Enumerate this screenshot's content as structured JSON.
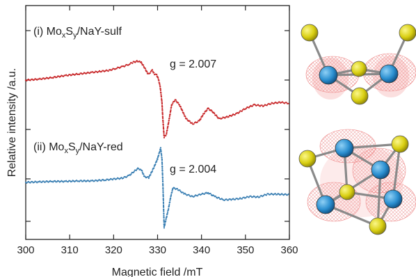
{
  "chart_data": {
    "type": "line",
    "xlabel": "Magnetic field /mT",
    "ylabel": "Relative intensity /a.u.",
    "xlim": [
      300,
      360
    ],
    "xticks": [
      300,
      310,
      320,
      330,
      340,
      350,
      360
    ],
    "grid": false,
    "legend": "none",
    "series": [
      {
        "name": "(i) MoxSy/NaY-sulf",
        "name_parts": {
          "pre": "(i) Mo",
          "sub1": "x",
          "mid": "S",
          "sub2": "y",
          "post": "/NaY-sulf"
        },
        "g_label": "g = 2.007",
        "color": "#c8282a",
        "x": [
          300,
          303,
          306,
          309,
          312,
          315,
          317,
          319,
          320.5,
          322,
          323.5,
          324.5,
          325.5,
          326.3,
          327,
          327.8,
          328.3,
          328.8,
          329.3,
          329.8,
          330.2,
          330.6,
          331,
          331.2,
          331.5,
          332,
          332.6,
          333.2,
          334,
          335,
          336.5,
          338,
          339.5,
          340.5,
          341.5,
          342.5,
          344,
          346,
          348,
          350,
          352,
          354,
          356,
          358,
          360
        ],
        "y": [
          0.43,
          0.45,
          0.48,
          0.52,
          0.55,
          0.58,
          0.6,
          0.62,
          0.66,
          0.69,
          0.74,
          0.78,
          0.8,
          0.77,
          0.68,
          0.55,
          0.58,
          0.62,
          0.55,
          0.53,
          0.45,
          0.3,
          0.0,
          -0.32,
          -0.68,
          -0.62,
          -0.35,
          -0.05,
          0.05,
          -0.05,
          -0.32,
          -0.42,
          -0.36,
          -0.22,
          -0.12,
          -0.18,
          -0.32,
          -0.28,
          -0.22,
          -0.12,
          -0.05,
          -0.07,
          -0.02,
          0.0,
          -0.02
        ]
      },
      {
        "name": "(ii) MoxSy/NaY-red",
        "name_parts": {
          "pre": "(ii) Mo",
          "sub1": "x",
          "mid": "S",
          "sub2": "y",
          "post": "/NaY-red"
        },
        "g_label": "g = 2.004",
        "color": "#3a7fb3",
        "x": [
          300,
          303,
          306,
          309,
          312,
          315,
          318,
          320,
          322,
          323.5,
          324.5,
          325.5,
          326.3,
          327,
          328,
          329,
          330,
          330.7,
          331,
          331.2,
          331.5,
          332,
          332.5,
          333,
          333.5,
          334.5,
          336,
          338,
          340,
          341.5,
          343,
          345,
          347,
          349,
          351,
          353,
          355,
          357,
          360
        ],
        "y": [
          0.0,
          0.01,
          0.02,
          0.02,
          0.03,
          0.03,
          0.05,
          0.07,
          0.09,
          0.14,
          0.22,
          0.29,
          0.27,
          0.12,
          0.1,
          0.28,
          0.5,
          0.72,
          0.5,
          0.0,
          -0.95,
          -0.75,
          -0.55,
          -0.3,
          -0.12,
          -0.14,
          -0.24,
          -0.3,
          -0.25,
          -0.22,
          -0.3,
          -0.37,
          -0.36,
          -0.34,
          -0.3,
          -0.31,
          -0.25,
          -0.25,
          -0.26
        ]
      }
    ]
  }
}
